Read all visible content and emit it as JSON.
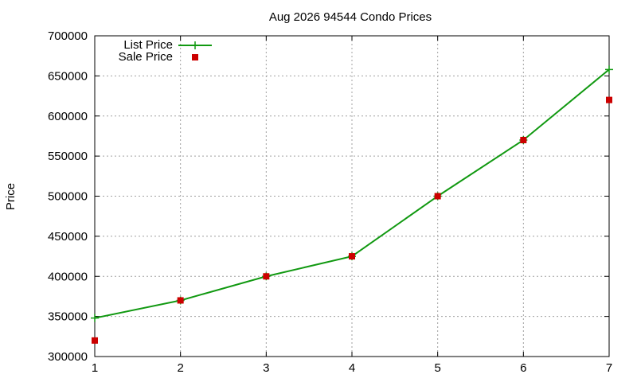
{
  "chart_data": {
    "type": "line",
    "title": "Aug 2026 94544 Condo Prices",
    "xlabel": "",
    "ylabel": "Price",
    "x": [
      1,
      2,
      3,
      4,
      5,
      6,
      7
    ],
    "xlim": [
      1,
      7
    ],
    "ylim": [
      300000,
      700000
    ],
    "xticks": [
      "1",
      "2",
      "3",
      "4",
      "5",
      "6",
      "7"
    ],
    "yticks": [
      "300000",
      "350000",
      "400000",
      "450000",
      "500000",
      "550000",
      "600000",
      "650000",
      "700000"
    ],
    "grid": true,
    "legend_position": "top-left",
    "series": [
      {
        "name": "List Price",
        "style": "line+cross",
        "color": "#119911",
        "values": [
          348000,
          370000,
          400000,
          425000,
          500000,
          570000,
          658000
        ]
      },
      {
        "name": "Sale Price",
        "style": "square",
        "color": "#cc0000",
        "values": [
          320000,
          370000,
          400000,
          425000,
          500000,
          570000,
          620000
        ]
      }
    ]
  }
}
